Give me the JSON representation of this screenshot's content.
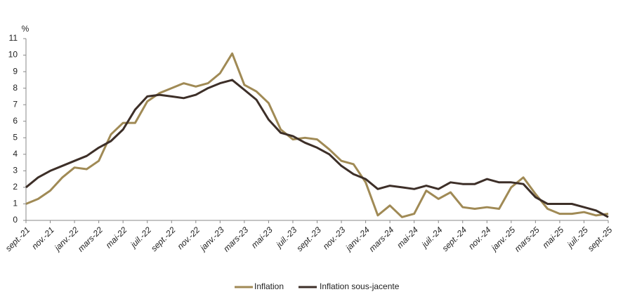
{
  "chart_data": {
    "type": "line",
    "y_label": "%",
    "categories": [
      "sept.-21",
      null,
      "nov.-21",
      null,
      "janv.-22",
      null,
      "mars-22",
      null,
      "mai-22",
      null,
      "juil.-22",
      null,
      "sept.-22",
      null,
      "nov.-22",
      null,
      "janv.-23",
      null,
      "mars-23",
      null,
      "mai-23",
      null,
      "juil.-23",
      null,
      "sept.-23",
      null,
      "nov.-23",
      null,
      "janv.-24",
      null,
      "mars-24",
      null,
      "mai-24",
      null,
      "juil.-24",
      null,
      "sept.-24",
      null,
      "nov.-24",
      null,
      "janv.-25",
      null,
      "mars-25",
      null,
      "mai-25",
      null,
      "juil.-25",
      null,
      "sept.-25"
    ],
    "series": [
      {
        "name": "Inflation",
        "color": "#a08a55",
        "values": [
          1.0,
          1.3,
          1.8,
          2.6,
          3.2,
          3.1,
          3.6,
          5.2,
          5.9,
          5.9,
          7.2,
          7.7,
          8.0,
          8.3,
          8.1,
          8.3,
          8.9,
          10.1,
          8.2,
          7.8,
          7.1,
          5.5,
          4.9,
          5.0,
          4.9,
          4.3,
          3.6,
          3.4,
          2.3,
          0.3,
          0.9,
          0.2,
          0.4,
          1.8,
          1.3,
          1.7,
          0.8,
          0.7,
          0.8,
          0.7,
          2.0,
          2.6,
          1.6,
          0.7,
          0.4,
          0.4,
          0.5,
          0.3,
          0.4
        ]
      },
      {
        "name": "Inflation sous-jacente",
        "color": "#3d2f28",
        "values": [
          2.0,
          2.6,
          3.0,
          3.3,
          3.6,
          3.9,
          4.4,
          4.8,
          5.5,
          6.7,
          7.5,
          7.6,
          7.5,
          7.4,
          7.6,
          8.0,
          8.3,
          8.5,
          7.9,
          7.3,
          6.1,
          5.3,
          5.1,
          4.7,
          4.4,
          4.0,
          3.3,
          2.8,
          2.5,
          1.9,
          2.1,
          2.0,
          1.9,
          2.1,
          1.9,
          2.3,
          2.2,
          2.2,
          2.5,
          2.3,
          2.3,
          2.2,
          1.4,
          1.0,
          1.0,
          1.0,
          0.8,
          0.6,
          0.2
        ]
      }
    ],
    "ylim": [
      0,
      11
    ],
    "yticks": [
      0,
      1,
      2,
      3,
      4,
      5,
      6,
      7,
      8,
      9,
      10,
      11
    ],
    "grid": false,
    "legend": "bottom"
  }
}
